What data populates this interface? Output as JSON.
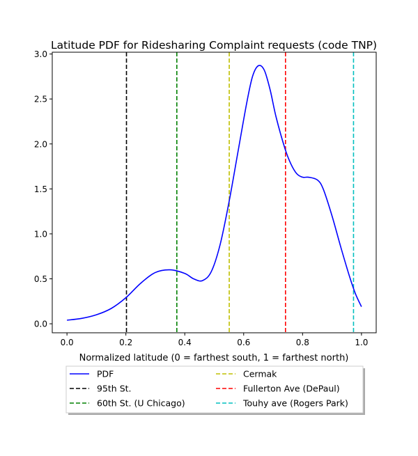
{
  "chart_data": {
    "type": "line",
    "title": "Latitude PDF for Ridesharing Complaint  requests (code TNP)",
    "xlabel": "Normalized latitude (0 = farthest south, 1 = farthest north)",
    "ylabel": "",
    "xlim": [
      -0.05,
      1.05
    ],
    "ylim": [
      -0.1,
      3.02
    ],
    "x_ticks": [
      0.0,
      0.2,
      0.4,
      0.6,
      0.8,
      1.0
    ],
    "x_tick_labels": [
      "0.0",
      "0.2",
      "0.4",
      "0.6",
      "0.8",
      "1.0"
    ],
    "y_ticks": [
      0.0,
      0.5,
      1.0,
      1.5,
      2.0,
      2.5,
      3.0
    ],
    "y_tick_labels": [
      "0.0",
      "0.5",
      "1.0",
      "1.5",
      "2.0",
      "2.5",
      "3.0"
    ],
    "grid": false,
    "legend_placement": "below-axes",
    "series": [
      {
        "name": "PDF",
        "color": "#0000ff",
        "style": "solid",
        "x": [
          0.0,
          0.05,
          0.1,
          0.15,
          0.2,
          0.25,
          0.3,
          0.35,
          0.4,
          0.43,
          0.46,
          0.49,
          0.52,
          0.55,
          0.58,
          0.61,
          0.63,
          0.65,
          0.67,
          0.69,
          0.71,
          0.74,
          0.76,
          0.78,
          0.8,
          0.82,
          0.85,
          0.87,
          0.9,
          0.93,
          0.96,
          0.98,
          1.0
        ],
        "y": [
          0.04,
          0.06,
          0.1,
          0.17,
          0.29,
          0.45,
          0.57,
          0.6,
          0.56,
          0.5,
          0.48,
          0.58,
          0.88,
          1.35,
          1.9,
          2.45,
          2.75,
          2.87,
          2.82,
          2.6,
          2.3,
          1.95,
          1.78,
          1.67,
          1.63,
          1.63,
          1.6,
          1.5,
          1.2,
          0.85,
          0.52,
          0.33,
          0.19
        ]
      }
    ],
    "reference_lines": [
      {
        "name": "95th St.",
        "x": 0.202,
        "color": "#000000"
      },
      {
        "name": "60th St. (U Chicago)",
        "x": 0.373,
        "color": "#008000"
      },
      {
        "name": "Cermak",
        "x": 0.551,
        "color": "#bfbf00"
      },
      {
        "name": "Fullerton Ave (DePaul)",
        "x": 0.742,
        "color": "#ff0000"
      },
      {
        "name": "Touhy ave (Rogers Park)",
        "x": 0.973,
        "color": "#00bfbf"
      }
    ]
  }
}
